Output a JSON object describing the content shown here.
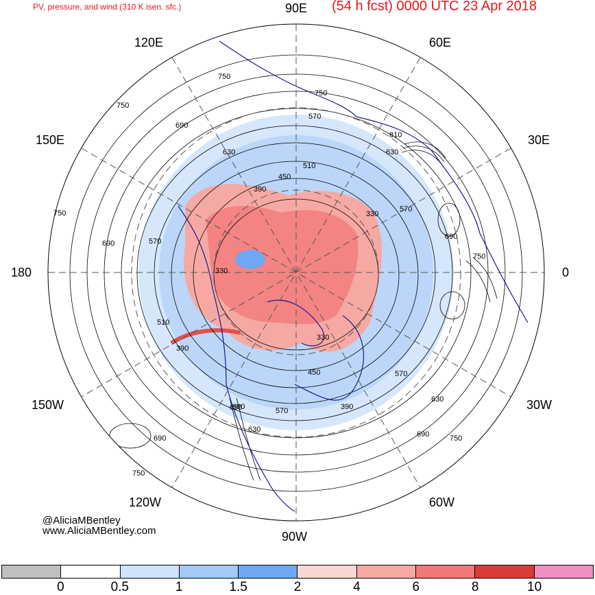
{
  "header": {
    "left_title": "PV, pressure, and wind (310 K isen. sfc.)",
    "right_title": "(54 h fcst) 0000 UTC 23 Apr 2018"
  },
  "longitude_labels": [
    "90E",
    "60E",
    "30E",
    "0",
    "30W",
    "60W",
    "90W",
    "120W",
    "150W",
    "180",
    "150E",
    "120E"
  ],
  "contour_labels": [
    "330",
    "330",
    "330",
    "390",
    "390",
    "390",
    "450",
    "450",
    "510",
    "510",
    "570",
    "570",
    "570",
    "570",
    "630",
    "630",
    "630",
    "690",
    "690",
    "690",
    "690",
    "690",
    "750",
    "750",
    "750",
    "750",
    "750",
    "810",
    "750",
    "690",
    "570",
    "630",
    "690",
    "750"
  ],
  "credits": {
    "handle": "@AliciaMBentley",
    "website": "www.AliciaMBentley.com"
  },
  "colorbar": {
    "colors": [
      "#c0c0c0",
      "#ffffff",
      "#cfe3fb",
      "#a2c9f7",
      "#6ea8f2",
      "#f8d7d3",
      "#f6a9a3",
      "#f27878",
      "#d93a3a",
      "#f08fc0"
    ],
    "tick_labels": [
      "0",
      "0.5",
      "1",
      "1.5",
      "2",
      "4",
      "6",
      "8",
      "10"
    ]
  }
}
